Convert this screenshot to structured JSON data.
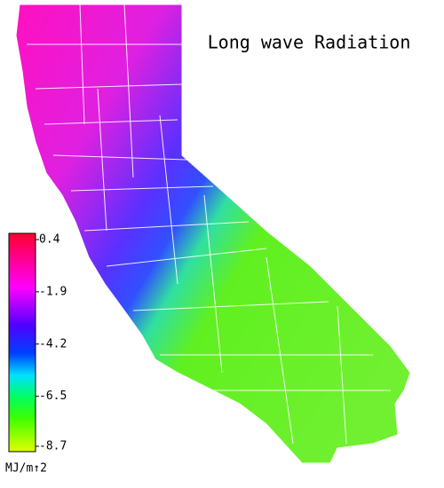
{
  "title": "Long wave Radiation",
  "colorbar": {
    "clim": [
      -8.7,
      0.4
    ],
    "ticks": [
      0.4,
      -1.9,
      -4.2,
      -6.5,
      -8.7
    ],
    "unit": "MJ/m↑2"
  }
}
